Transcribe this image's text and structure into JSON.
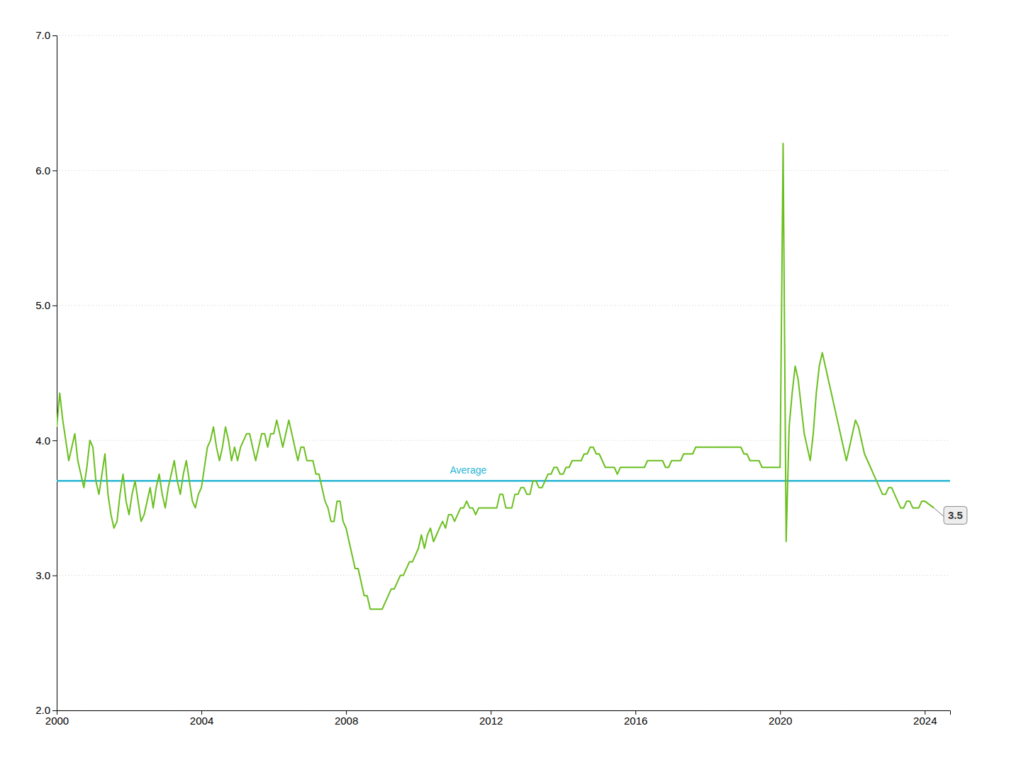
{
  "chart_data": {
    "type": "line",
    "color": "#6abf1e",
    "grid": true,
    "xlim": [
      2000.0,
      2024.7
    ],
    "xticks": [
      2000,
      2004,
      2008,
      2012,
      2016,
      2020,
      2024
    ],
    "ylim": [
      2.0,
      7.0
    ],
    "yticks": [
      {
        "value": 2.0,
        "label": "2.0"
      },
      {
        "value": 3.0,
        "label": "3.0"
      },
      {
        "value": 4.0,
        "label": "4.0"
      },
      {
        "value": 5.0,
        "label": "5.0"
      },
      {
        "value": 6.0,
        "label": "6.0"
      },
      {
        "value": 7.0,
        "label": "7.0"
      }
    ],
    "average": {
      "value": 3.7,
      "label": "Average",
      "color": "#29b6d6"
    },
    "annotations": [
      {
        "text": "3.5",
        "value": 3.5
      }
    ],
    "x": [
      2000.0,
      2000.083,
      2000.167,
      2000.25,
      2000.333,
      2000.417,
      2000.5,
      2000.583,
      2000.667,
      2000.75,
      2000.833,
      2000.917,
      2001.0,
      2001.083,
      2001.167,
      2001.25,
      2001.333,
      2001.417,
      2001.5,
      2001.583,
      2001.667,
      2001.75,
      2001.833,
      2001.917,
      2002.0,
      2002.083,
      2002.167,
      2002.25,
      2002.333,
      2002.417,
      2002.5,
      2002.583,
      2002.667,
      2002.75,
      2002.833,
      2002.917,
      2003.0,
      2003.083,
      2003.167,
      2003.25,
      2003.333,
      2003.417,
      2003.5,
      2003.583,
      2003.667,
      2003.75,
      2003.833,
      2003.917,
      2004.0,
      2004.083,
      2004.167,
      2004.25,
      2004.333,
      2004.417,
      2004.5,
      2004.583,
      2004.667,
      2004.75,
      2004.833,
      2004.917,
      2005.0,
      2005.083,
      2005.167,
      2005.25,
      2005.333,
      2005.417,
      2005.5,
      2005.583,
      2005.667,
      2005.75,
      2005.833,
      2005.917,
      2006.0,
      2006.083,
      2006.167,
      2006.25,
      2006.333,
      2006.417,
      2006.5,
      2006.583,
      2006.667,
      2006.75,
      2006.833,
      2006.917,
      2007.0,
      2007.083,
      2007.167,
      2007.25,
      2007.333,
      2007.417,
      2007.5,
      2007.583,
      2007.667,
      2007.75,
      2007.833,
      2007.917,
      2008.0,
      2008.083,
      2008.167,
      2008.25,
      2008.333,
      2008.417,
      2008.5,
      2008.583,
      2008.667,
      2008.75,
      2008.833,
      2008.917,
      2009.0,
      2009.083,
      2009.167,
      2009.25,
      2009.333,
      2009.417,
      2009.5,
      2009.583,
      2009.667,
      2009.75,
      2009.833,
      2009.917,
      2010.0,
      2010.083,
      2010.167,
      2010.25,
      2010.333,
      2010.417,
      2010.5,
      2010.583,
      2010.667,
      2010.75,
      2010.833,
      2010.917,
      2011.0,
      2011.083,
      2011.167,
      2011.25,
      2011.333,
      2011.417,
      2011.5,
      2011.583,
      2011.667,
      2011.75,
      2011.833,
      2011.917,
      2012.0,
      2012.083,
      2012.167,
      2012.25,
      2012.333,
      2012.417,
      2012.5,
      2012.583,
      2012.667,
      2012.75,
      2012.833,
      2012.917,
      2013.0,
      2013.083,
      2013.167,
      2013.25,
      2013.333,
      2013.417,
      2013.5,
      2013.583,
      2013.667,
      2013.75,
      2013.833,
      2013.917,
      2014.0,
      2014.083,
      2014.167,
      2014.25,
      2014.333,
      2014.417,
      2014.5,
      2014.583,
      2014.667,
      2014.75,
      2014.833,
      2014.917,
      2015.0,
      2015.083,
      2015.167,
      2015.25,
      2015.333,
      2015.417,
      2015.5,
      2015.583,
      2015.667,
      2015.75,
      2015.833,
      2015.917,
      2016.0,
      2016.083,
      2016.167,
      2016.25,
      2016.333,
      2016.417,
      2016.5,
      2016.583,
      2016.667,
      2016.75,
      2016.833,
      2016.917,
      2017.0,
      2017.083,
      2017.167,
      2017.25,
      2017.333,
      2017.417,
      2017.5,
      2017.583,
      2017.667,
      2017.75,
      2017.833,
      2017.917,
      2018.0,
      2018.083,
      2018.167,
      2018.25,
      2018.333,
      2018.417,
      2018.5,
      2018.583,
      2018.667,
      2018.75,
      2018.833,
      2018.917,
      2019.0,
      2019.083,
      2019.167,
      2019.25,
      2019.333,
      2019.417,
      2019.5,
      2019.583,
      2019.667,
      2019.75,
      2019.833,
      2019.917,
      2020.0,
      2020.083,
      2020.167,
      2020.25,
      2020.333,
      2020.417,
      2020.5,
      2020.583,
      2020.667,
      2020.75,
      2020.833,
      2020.917,
      2021.0,
      2021.083,
      2021.167,
      2021.25,
      2021.333,
      2021.417,
      2021.5,
      2021.583,
      2021.667,
      2021.75,
      2021.833,
      2021.917,
      2022.0,
      2022.083,
      2022.167,
      2022.25,
      2022.333,
      2022.417,
      2022.5,
      2022.583,
      2022.667,
      2022.75,
      2022.833,
      2022.917,
      2023.0,
      2023.083,
      2023.167,
      2023.25,
      2023.333,
      2023.417,
      2023.5,
      2023.583,
      2023.667,
      2023.75,
      2023.833,
      2023.917,
      2024.0,
      2024.25
    ],
    "values": [
      4.1,
      4.35,
      4.15,
      4.0,
      3.85,
      3.95,
      4.05,
      3.85,
      3.75,
      3.65,
      3.8,
      4.0,
      3.95,
      3.7,
      3.6,
      3.75,
      3.9,
      3.6,
      3.45,
      3.35,
      3.4,
      3.6,
      3.75,
      3.55,
      3.45,
      3.6,
      3.7,
      3.55,
      3.4,
      3.45,
      3.55,
      3.65,
      3.5,
      3.65,
      3.75,
      3.6,
      3.5,
      3.65,
      3.75,
      3.85,
      3.7,
      3.6,
      3.75,
      3.85,
      3.7,
      3.55,
      3.5,
      3.6,
      3.65,
      3.8,
      3.95,
      4.0,
      4.1,
      3.95,
      3.85,
      3.95,
      4.1,
      4.0,
      3.85,
      3.95,
      3.85,
      3.95,
      4.0,
      4.05,
      4.05,
      3.95,
      3.85,
      3.95,
      4.05,
      4.05,
      3.95,
      4.05,
      4.05,
      4.15,
      4.05,
      3.95,
      4.05,
      4.15,
      4.05,
      3.95,
      3.85,
      3.95,
      3.95,
      3.85,
      3.85,
      3.85,
      3.75,
      3.75,
      3.65,
      3.55,
      3.5,
      3.4,
      3.4,
      3.55,
      3.55,
      3.4,
      3.35,
      3.25,
      3.15,
      3.05,
      3.05,
      2.95,
      2.85,
      2.85,
      2.75,
      2.75,
      2.75,
      2.75,
      2.75,
      2.8,
      2.85,
      2.9,
      2.9,
      2.95,
      3.0,
      3.0,
      3.05,
      3.1,
      3.1,
      3.15,
      3.2,
      3.3,
      3.2,
      3.3,
      3.35,
      3.25,
      3.3,
      3.35,
      3.4,
      3.35,
      3.45,
      3.45,
      3.4,
      3.45,
      3.5,
      3.5,
      3.55,
      3.5,
      3.5,
      3.45,
      3.5,
      3.5,
      3.5,
      3.5,
      3.5,
      3.5,
      3.5,
      3.6,
      3.6,
      3.5,
      3.5,
      3.5,
      3.6,
      3.6,
      3.65,
      3.65,
      3.6,
      3.6,
      3.7,
      3.7,
      3.65,
      3.65,
      3.7,
      3.75,
      3.75,
      3.8,
      3.8,
      3.75,
      3.75,
      3.8,
      3.8,
      3.85,
      3.85,
      3.85,
      3.85,
      3.9,
      3.9,
      3.95,
      3.95,
      3.9,
      3.9,
      3.85,
      3.8,
      3.8,
      3.8,
      3.8,
      3.75,
      3.8,
      3.8,
      3.8,
      3.8,
      3.8,
      3.8,
      3.8,
      3.8,
      3.8,
      3.85,
      3.85,
      3.85,
      3.85,
      3.85,
      3.85,
      3.8,
      3.8,
      3.85,
      3.85,
      3.85,
      3.85,
      3.9,
      3.9,
      3.9,
      3.9,
      3.95,
      3.95,
      3.95,
      3.95,
      3.95,
      3.95,
      3.95,
      3.95,
      3.95,
      3.95,
      3.95,
      3.95,
      3.95,
      3.95,
      3.95,
      3.95,
      3.9,
      3.9,
      3.85,
      3.85,
      3.85,
      3.85,
      3.8,
      3.8,
      3.8,
      3.8,
      3.8,
      3.8,
      3.8,
      6.2,
      3.25,
      4.1,
      4.35,
      4.55,
      4.45,
      4.25,
      4.05,
      3.95,
      3.85,
      4.05,
      4.35,
      4.55,
      4.65,
      4.55,
      4.45,
      4.35,
      4.25,
      4.15,
      4.05,
      3.95,
      3.85,
      3.95,
      4.05,
      4.15,
      4.1,
      4.0,
      3.9,
      3.85,
      3.8,
      3.75,
      3.7,
      3.65,
      3.6,
      3.6,
      3.65,
      3.65,
      3.6,
      3.55,
      3.5,
      3.5,
      3.55,
      3.55,
      3.5,
      3.5,
      3.5,
      3.55,
      3.55,
      3.5
    ]
  }
}
